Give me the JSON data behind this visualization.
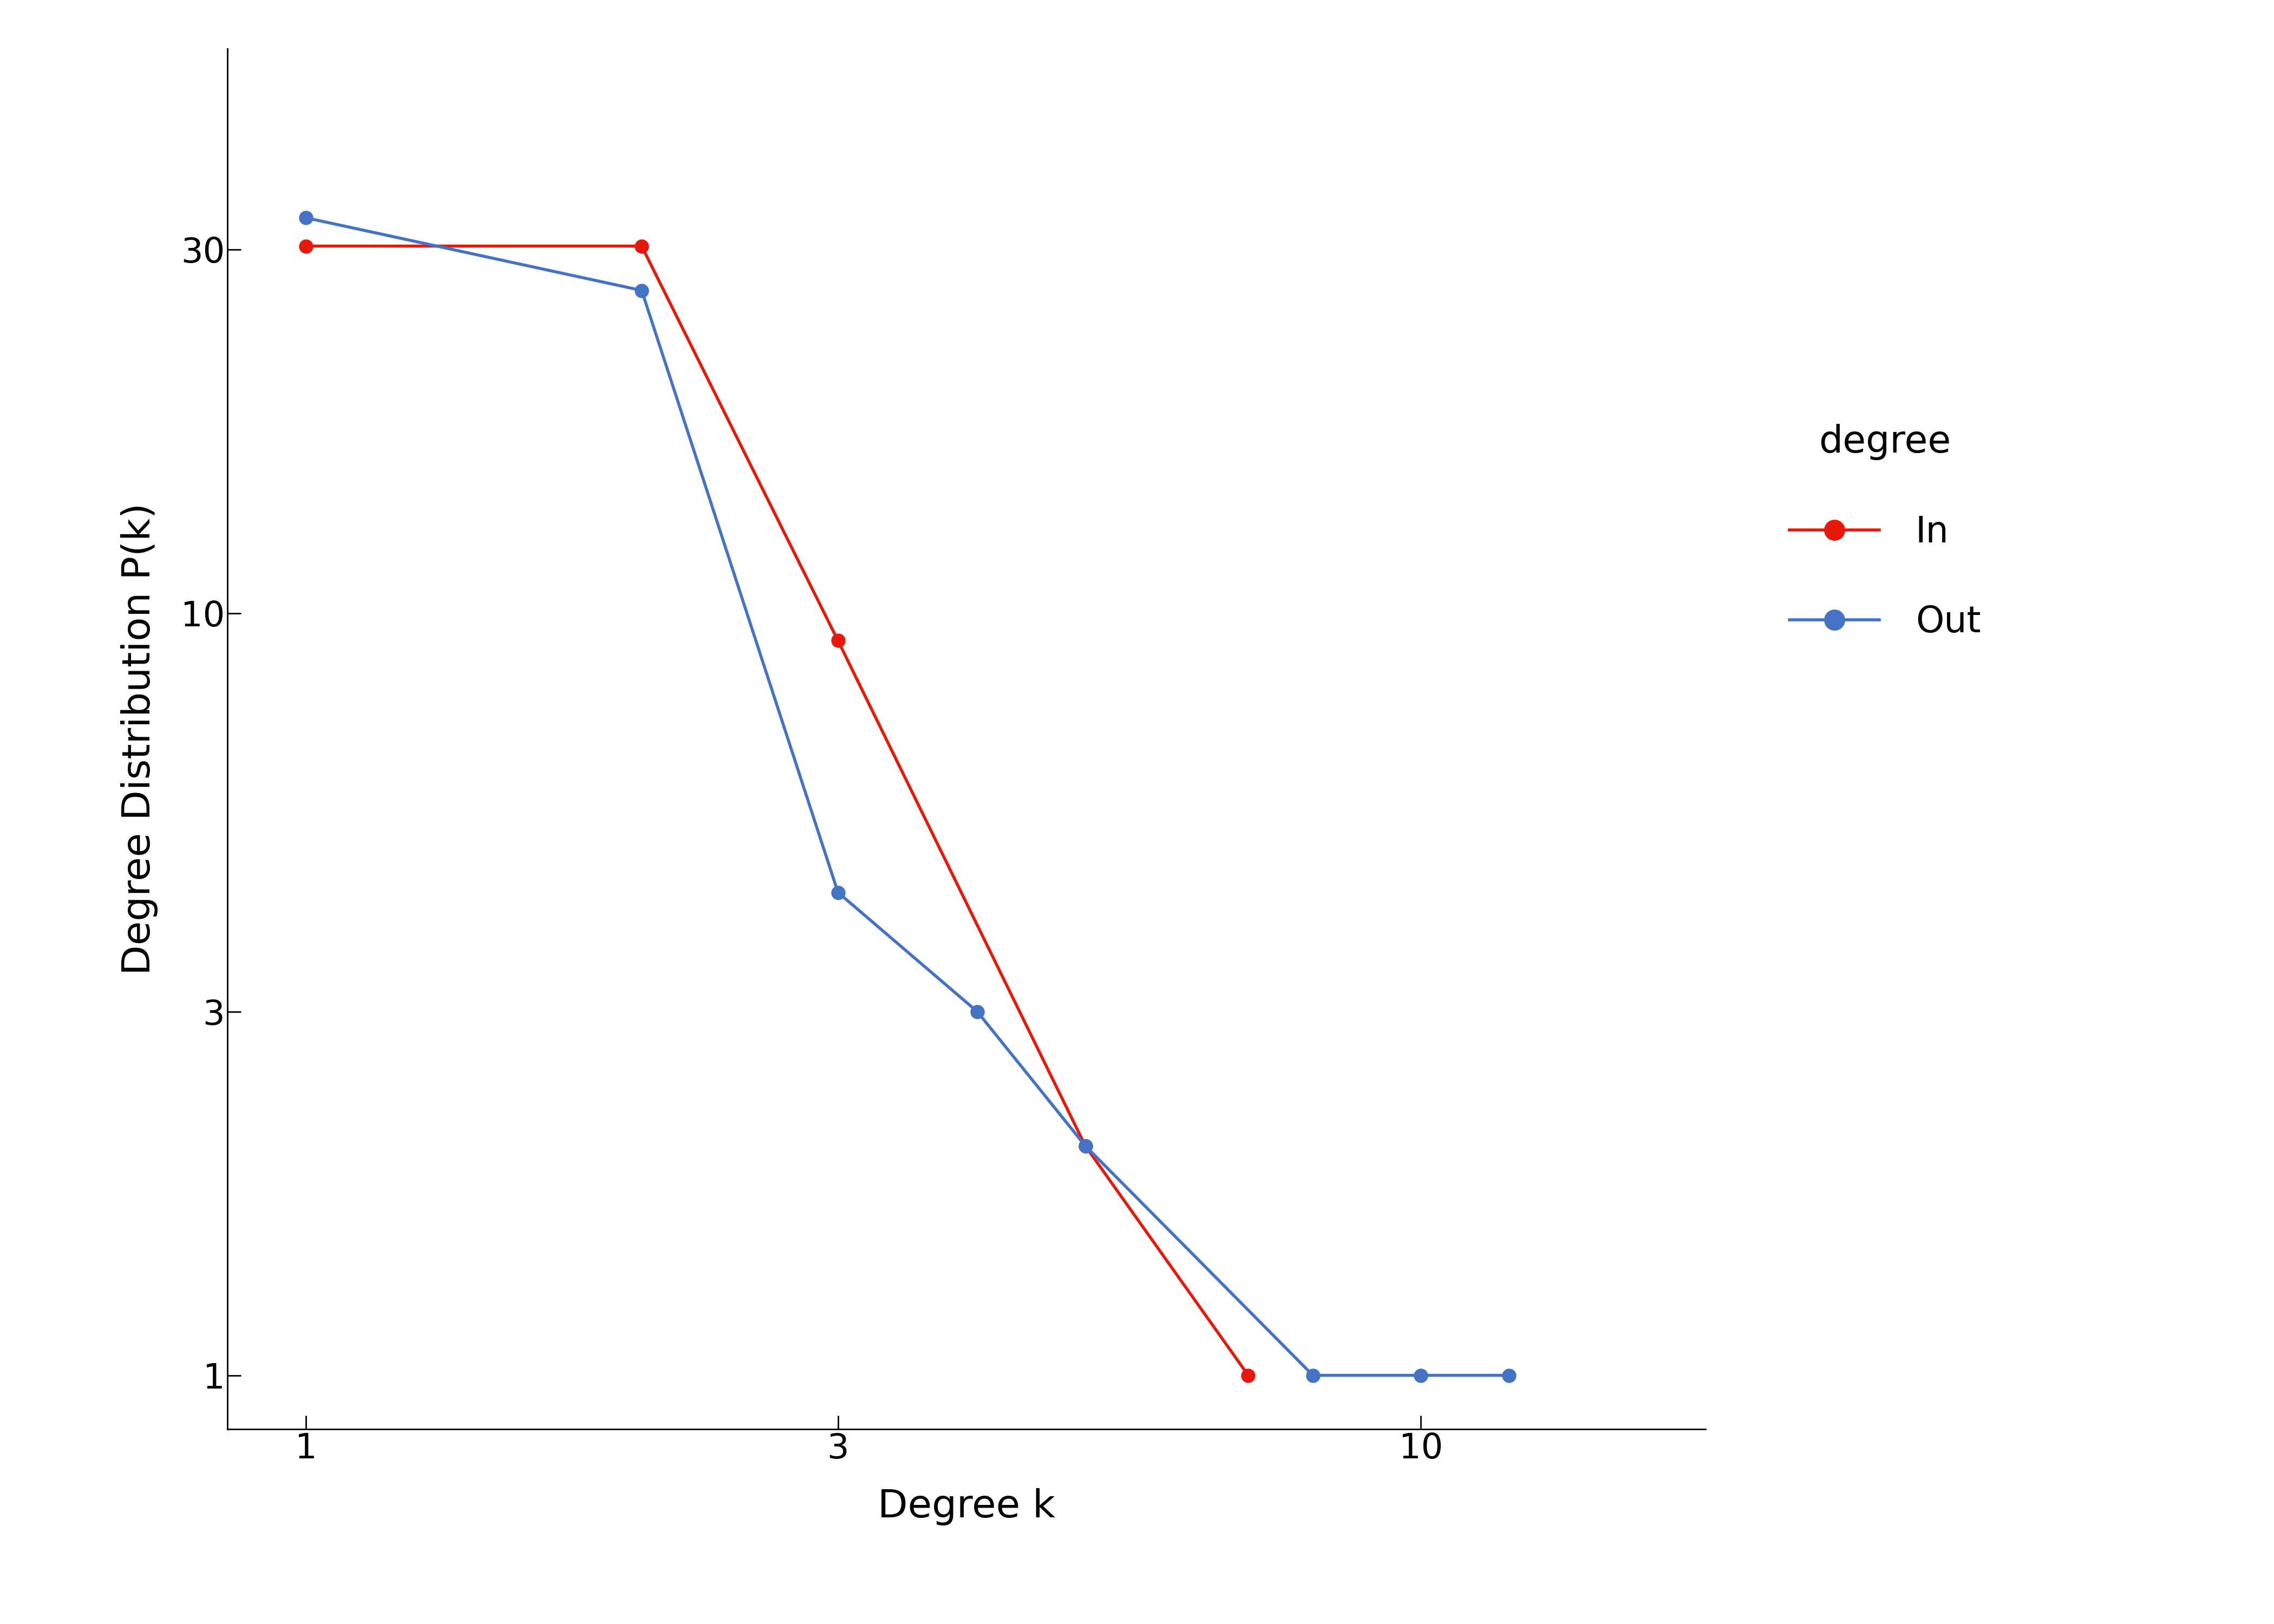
{
  "in_x": [
    1,
    2,
    3,
    5,
    7
  ],
  "in_y": [
    30.3,
    30.3,
    9.2,
    2.0,
    1.0
  ],
  "out_x": [
    1,
    2,
    3,
    4,
    5,
    8,
    10,
    12
  ],
  "out_y": [
    33.0,
    26.5,
    4.3,
    3.0,
    2.0,
    1.0,
    1.0,
    1.0
  ],
  "in_color": "#E8190A",
  "out_color": "#4472C4",
  "xlabel": "Degree k",
  "ylabel": "Degree Distribution P(k)",
  "legend_title": "degree",
  "legend_in": "In",
  "legend_out": "Out",
  "xlim": [
    0.85,
    18
  ],
  "ylim": [
    0.85,
    55
  ],
  "xticks": [
    1,
    3,
    10
  ],
  "yticks": [
    1,
    3,
    10,
    30
  ],
  "background_color": "#ffffff",
  "line_width": 4,
  "marker_size": 18,
  "label_fontsize": 52,
  "tick_fontsize": 46,
  "legend_fontsize": 48,
  "legend_title_fontsize": 50
}
